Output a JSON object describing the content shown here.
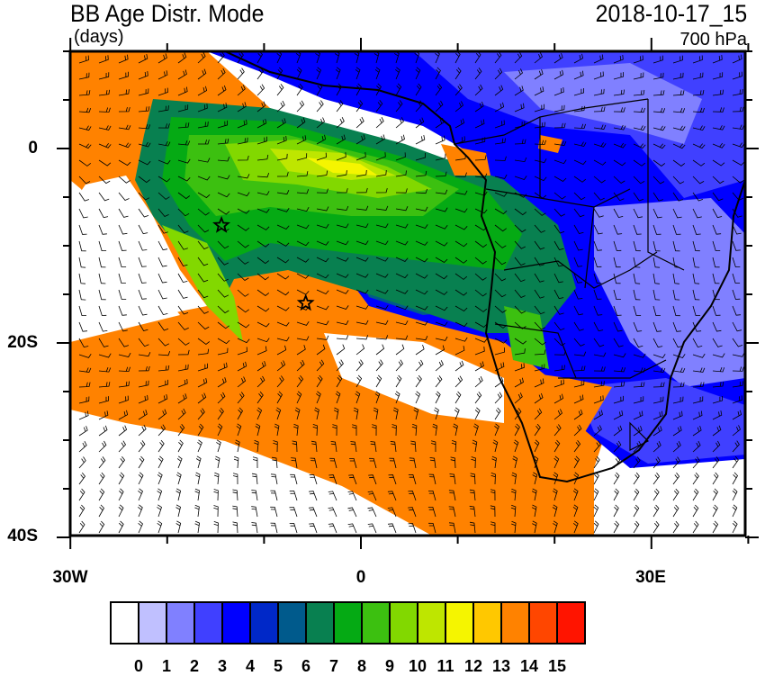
{
  "title": "BB Age Distr. Mode",
  "units": "(days)",
  "datetime": "2018-10-17_15",
  "level": "700 hPa",
  "map": {
    "region": "South-East Atlantic and Southern Africa",
    "lon_range": [
      -30,
      40
    ],
    "lat_range": [
      -40,
      10
    ],
    "x_tick_labels": [
      "30W",
      "0",
      "30E"
    ],
    "y_tick_labels": [
      "0",
      "20S",
      "40S"
    ],
    "overlay": "wind barbs",
    "markers": [
      {
        "type": "star",
        "lon": -14.4,
        "lat": -7.9
      },
      {
        "type": "star",
        "lon": -5.7,
        "lat": -15.9
      }
    ]
  },
  "colorbar": {
    "labels": [
      "0",
      "1",
      "2",
      "3",
      "4",
      "5",
      "6",
      "7",
      "8",
      "9",
      "10",
      "11",
      "12",
      "13",
      "14",
      "15"
    ],
    "colors": [
      "#ffffff",
      "#c0c0ff",
      "#8080ff",
      "#4040ff",
      "#0000ff",
      "#0028c8",
      "#005a8c",
      "#088050",
      "#05aa14",
      "#3cc010",
      "#82d800",
      "#bee600",
      "#f5f500",
      "#ffc800",
      "#ff8200",
      "#ff4600",
      "#ff1400"
    ]
  }
}
